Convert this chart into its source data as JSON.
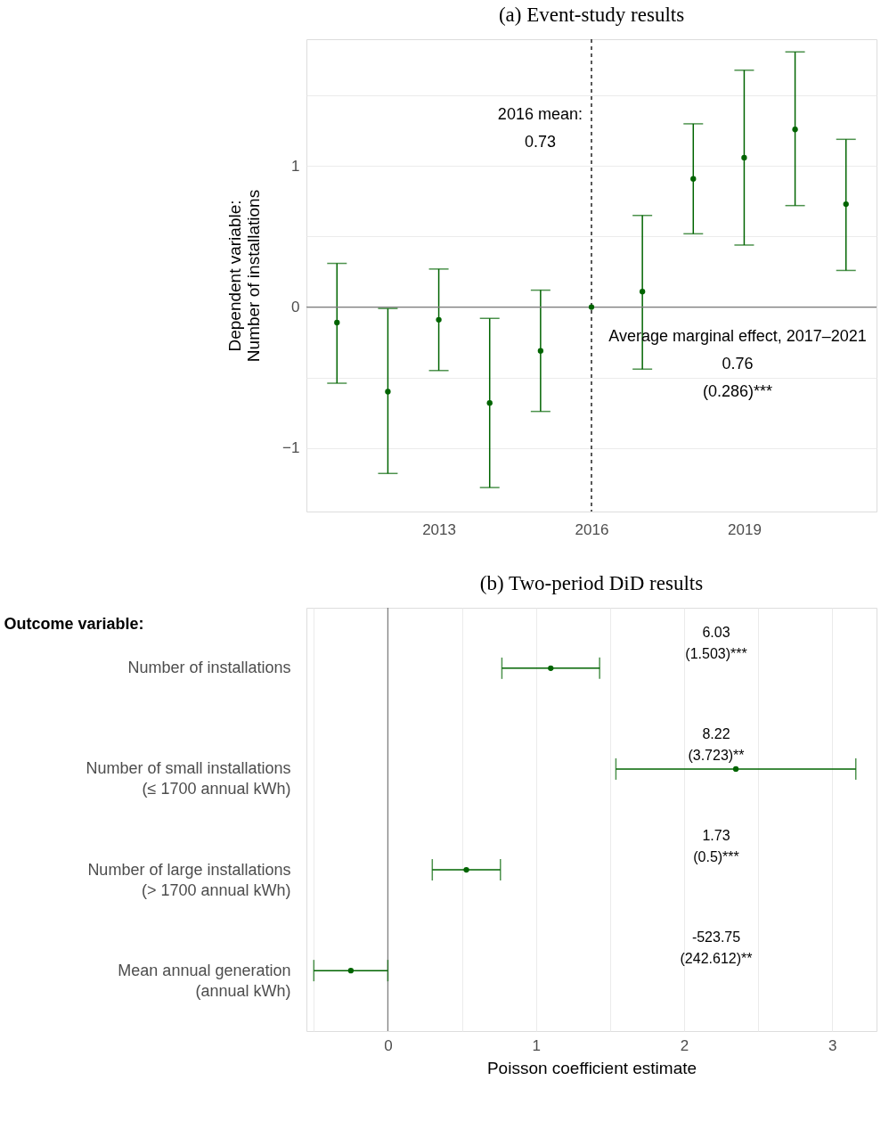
{
  "chart_data": [
    {
      "type": "scatter",
      "title": "(a) Event-study results",
      "ylabel": "Dependent variable:\nNumber of installations",
      "x": [
        2011,
        2012,
        2013,
        2014,
        2015,
        2016,
        2017,
        2018,
        2019,
        2020,
        2021
      ],
      "series": [
        {
          "color": "#006400",
          "values": [
            -0.11,
            -0.6,
            -0.09,
            -0.68,
            -0.31,
            0,
            0.11,
            0.91,
            1.06,
            1.26,
            0.73
          ],
          "errors": [
            [
              -0.54,
              0.31
            ],
            [
              -1.18,
              -0.01
            ],
            [
              -0.45,
              0.27
            ],
            [
              -1.28,
              -0.08
            ],
            [
              -0.74,
              0.12
            ],
            null,
            [
              -0.44,
              0.65
            ],
            [
              0.52,
              1.3
            ],
            [
              0.44,
              1.68
            ],
            [
              0.72,
              1.81
            ],
            [
              0.26,
              1.19
            ]
          ]
        }
      ],
      "xlim": [
        2010.4,
        2021.6
      ],
      "xticks": [
        2013,
        2016,
        2019
      ],
      "ylim": [
        -1.45,
        1.9
      ],
      "yticks": [
        {
          "value": -1,
          "label": "−1"
        },
        {
          "value": -0.5,
          "label": null
        },
        0,
        {
          "value": 0.5,
          "label": null
        },
        1,
        {
          "value": 1.5,
          "label": null
        }
      ],
      "ref_lines": [
        {
          "axis": "y",
          "value": 0,
          "color": "#7f7f7f",
          "line_style": "solid"
        },
        {
          "axis": "x",
          "value": 2016,
          "color": "#000000",
          "line_style": "dashed"
        }
      ],
      "annotations": [
        "2016 mean:\n0.73",
        "Average marginal effect, 2017–2021\n0.76\n(0.286)***"
      ],
      "grid": "y",
      "legend": false,
      "marker": "circle"
    },
    {
      "type": "scatter",
      "title": "(b) Two-period DiD results",
      "ylabel": "Outcome variable:",
      "xlabel": "Poisson coefficient estimate",
      "orientation": "horizontal",
      "categories": [
        "Number of installations",
        "Number of small installations\n(≤ 1700 annual kWh)",
        "Number of large installations\n(> 1700 annual kWh)",
        "Mean annual generation\n(annual kWh)"
      ],
      "series": [
        {
          "color": "#006400",
          "values": [
            1.1,
            2.35,
            0.53,
            -0.25
          ],
          "errors": [
            [
              0.77,
              1.43
            ],
            [
              1.54,
              3.16
            ],
            [
              0.3,
              0.76
            ],
            [
              -0.5,
              0.0
            ]
          ]
        }
      ],
      "xlim": [
        -0.55,
        3.3
      ],
      "xticks": [
        {
          "value": -0.5,
          "label": null
        },
        0,
        {
          "value": 0.5,
          "label": null
        },
        1,
        {
          "value": 1.5,
          "label": null
        },
        2,
        {
          "value": 2.5,
          "label": null
        },
        3
      ],
      "ref_lines": [
        {
          "axis": "x",
          "value": 0,
          "color": "#7f7f7f",
          "line_style": "solid"
        }
      ],
      "annotations": [
        "6.03\n(1.503)***",
        "8.22\n(3.723)**",
        "1.73\n(0.5)***",
        "-523.75\n(242.612)**"
      ],
      "grid": "x",
      "legend": false,
      "marker": "circle"
    }
  ]
}
